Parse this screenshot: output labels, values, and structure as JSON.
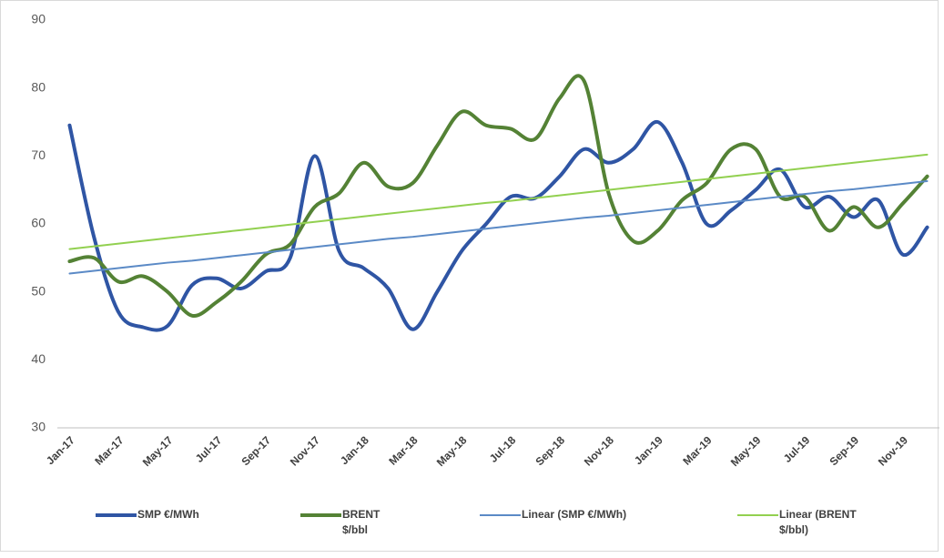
{
  "chart_data": {
    "type": "line",
    "categories": [
      "Jan-17",
      null,
      "Mar-17",
      null,
      "May-17",
      null,
      "Jul-17",
      null,
      "Sep-17",
      null,
      "Nov-17",
      null,
      "Jan-18",
      null,
      "Mar-18",
      null,
      "May-18",
      null,
      "Jul-18",
      null,
      "Sep-18",
      null,
      "Nov-18",
      null,
      "Jan-19",
      null,
      "Mar-19",
      null,
      "May-19",
      null,
      "Jul-19",
      null,
      "Sep-19",
      null,
      "Nov-19",
      null
    ],
    "series": [
      {
        "name": "SMP €/MWh",
        "color": "#2f55a4",
        "smooth": true,
        "width": 4,
        "values": [
          74.5,
          58,
          47,
          44.8,
          45,
          51,
          52,
          50.5,
          53,
          55,
          70,
          56,
          53.5,
          50.5,
          44.5,
          50,
          56,
          60,
          64,
          63.8,
          67,
          71,
          69,
          71,
          75,
          69,
          60,
          62,
          65,
          68,
          62.5,
          64,
          61,
          63.5,
          55.5,
          59.5
        ]
      },
      {
        "name": "BRENT $/bbl",
        "color": "#548235",
        "smooth": true,
        "width": 4,
        "values": [
          54.5,
          55,
          51.5,
          52.3,
          50,
          46.5,
          48.5,
          51.5,
          55.5,
          57,
          62.5,
          64.5,
          69,
          65.5,
          66,
          71.5,
          76.5,
          74.5,
          74,
          72.5,
          78.5,
          81,
          64.5,
          57.5,
          59,
          63.5,
          66,
          71,
          71,
          64,
          64,
          59,
          62.5,
          59.5,
          63,
          67
        ]
      },
      {
        "name": "Linear (SMP €/MWh)",
        "color": "#5b8ac6",
        "smooth": false,
        "width": 2,
        "values": [
          52.7,
          53.1,
          53.5,
          53.9,
          54.3,
          54.6,
          55,
          55.4,
          55.8,
          56.2,
          56.6,
          57,
          57.4,
          57.8,
          58.1,
          58.5,
          58.9,
          59.3,
          59.7,
          60.1,
          60.5,
          60.9,
          61.2,
          61.6,
          62,
          62.4,
          62.8,
          63.2,
          63.6,
          64,
          64.4,
          64.8,
          65.1,
          65.5,
          65.9,
          66.3
        ]
      },
      {
        "name": "Linear (BRENT $/bbl)",
        "color": "#92d050",
        "smooth": false,
        "width": 2,
        "values": [
          56.3,
          56.7,
          57.1,
          57.5,
          57.9,
          58.3,
          58.7,
          59.1,
          59.5,
          59.9,
          60.3,
          60.7,
          61.1,
          61.5,
          61.9,
          62.3,
          62.7,
          63.1,
          63.4,
          63.8,
          64.2,
          64.6,
          65,
          65.4,
          65.8,
          66.2,
          66.6,
          67,
          67.4,
          67.8,
          68.2,
          68.6,
          69,
          69.4,
          69.8,
          70.2
        ]
      }
    ],
    "ylim": [
      30,
      90
    ],
    "yticks": [
      30,
      40,
      50,
      60,
      70,
      80,
      90
    ],
    "grid": false
  }
}
